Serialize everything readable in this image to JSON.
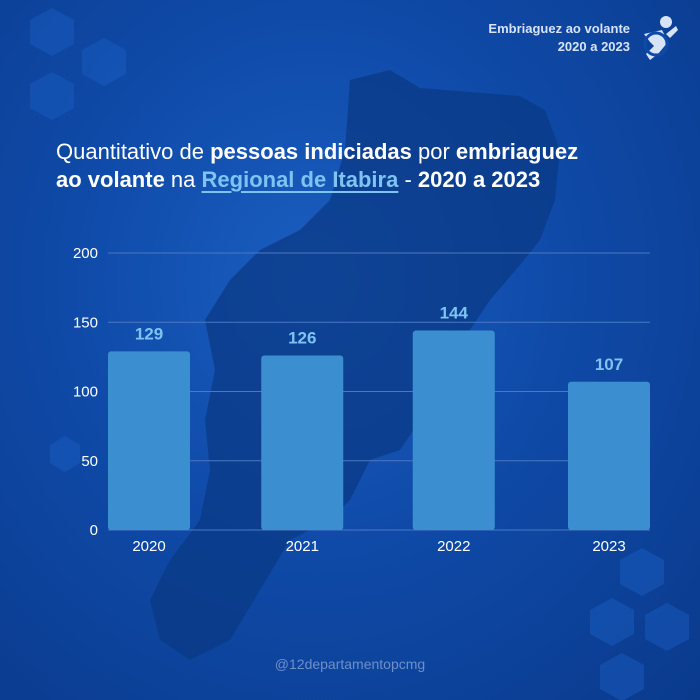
{
  "badge": {
    "line1": "Embriaguez ao volante",
    "line2": "2020 a 2023"
  },
  "title": {
    "p1": "Quantitativo de ",
    "p2": "pessoas indiciadas",
    "p3": " por ",
    "p4": "embriaguez",
    "p5": "ao volante",
    "p6": " na ",
    "p7": "Regional de Itabira",
    "p8": " - ",
    "p9": "2020 a 2023"
  },
  "footer": "@12departamentopcmg",
  "colors": {
    "bar": "#3b8fd0",
    "label": "#7ec3f2",
    "axis": "#ffffff",
    "grid": "#4a78c2"
  },
  "chart_data": {
    "type": "bar",
    "categories": [
      "2020",
      "2021",
      "2022",
      "2023"
    ],
    "values": [
      129,
      126,
      144,
      107
    ],
    "title": "Quantitativo de pessoas indiciadas por embriaguez ao volante na Regional de Itabira - 2020 a 2023",
    "ylim": [
      0,
      200
    ],
    "yticks": [
      0,
      50,
      100,
      150,
      200
    ],
    "grid": true
  }
}
